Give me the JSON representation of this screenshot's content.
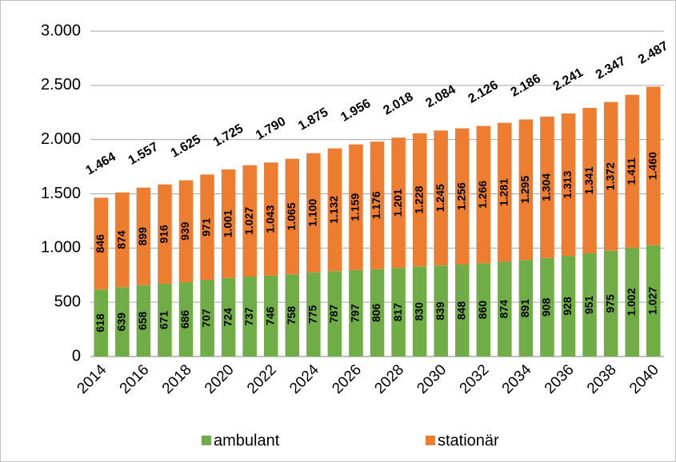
{
  "chart_data": {
    "type": "stacked_bar",
    "categories": [
      "2014",
      null,
      "2016",
      null,
      "2018",
      null,
      "2020",
      null,
      "2022",
      null,
      "2024",
      null,
      "2026",
      null,
      "2028",
      null,
      "2030",
      null,
      "2032",
      null,
      "2034",
      null,
      "2036",
      null,
      "2038",
      null,
      "2040"
    ],
    "series": [
      {
        "name": "ambulant",
        "color": "#70ad47",
        "values": [
          618,
          639,
          658,
          671,
          686,
          707,
          724,
          737,
          746,
          758,
          775,
          787,
          797,
          806,
          817,
          830,
          839,
          848,
          860,
          874,
          891,
          908,
          928,
          951,
          975,
          1002,
          1027
        ],
        "value_labels": [
          "618",
          "639",
          "658",
          "671",
          "686",
          "707",
          "724",
          "737",
          "746",
          "758",
          "775",
          "787",
          "797",
          "806",
          "817",
          "830",
          "839",
          "848",
          "860",
          "874",
          "891",
          "908",
          "928",
          "951",
          "975",
          "1.002",
          "1.027"
        ]
      },
      {
        "name": "stationär",
        "color": "#ed7d31",
        "values": [
          846,
          874,
          899,
          916,
          939,
          971,
          1001,
          1027,
          1043,
          1065,
          1100,
          1132,
          1159,
          1176,
          1201,
          1228,
          1245,
          1256,
          1266,
          1281,
          1295,
          1304,
          1313,
          1341,
          1372,
          1411,
          1460
        ],
        "value_labels": [
          "846",
          "874",
          "899",
          "916",
          "939",
          "971",
          "1.001",
          "1.027",
          "1.043",
          "1.065",
          "1.100",
          "1.132",
          "1.159",
          "1.176",
          "1.201",
          "1.228",
          "1.245",
          "1.256",
          "1.266",
          "1.281",
          "1.295",
          "1.304",
          "1.313",
          "1.341",
          "1.372",
          "1.411",
          "1.460"
        ]
      }
    ],
    "totals": [
      {
        "value": 1464,
        "label": "1.464"
      },
      {
        "value": 1557,
        "label": "1.557"
      },
      {
        "value": 1625,
        "label": "1.625"
      },
      {
        "value": 1725,
        "label": "1.725"
      },
      {
        "value": 1790,
        "label": "1.790"
      },
      {
        "value": 1875,
        "label": "1.875"
      },
      {
        "value": 1956,
        "label": "1.956"
      },
      {
        "value": 2018,
        "label": "2.018"
      },
      {
        "value": 2084,
        "label": "2.084"
      },
      {
        "value": 2126,
        "label": "2.126"
      },
      {
        "value": 2186,
        "label": "2.186"
      },
      {
        "value": 2241,
        "label": "2.241"
      },
      {
        "value": 2347,
        "label": "2.347"
      },
      {
        "value": 2487,
        "label": "2.487"
      }
    ],
    "ylim": [
      0,
      3000
    ],
    "yticks": [
      0,
      500,
      {
        "value": 1000,
        "label": "1.000"
      },
      {
        "value": 1500,
        "label": "1.500"
      },
      {
        "value": 2000,
        "label": "2.000"
      },
      {
        "value": 2500,
        "label": "2.500"
      },
      {
        "value": 3000,
        "label": "3.000"
      }
    ],
    "grid": true,
    "legend": "bottom"
  }
}
